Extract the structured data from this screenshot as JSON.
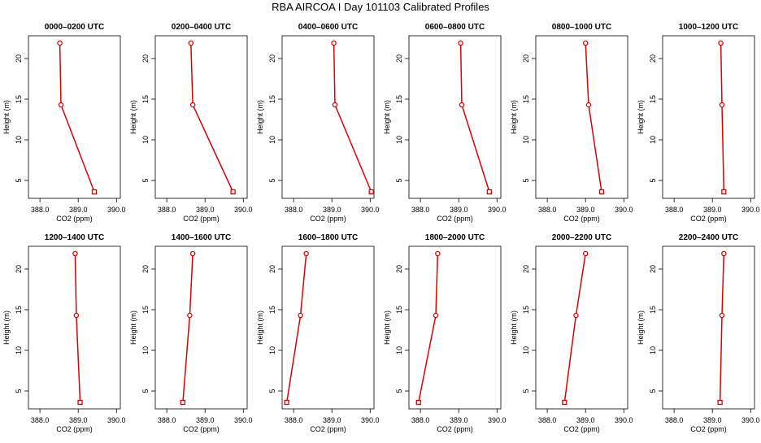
{
  "title": "RBA AIRCOA I  Day 101103  Calibrated Profiles",
  "common": {
    "xlabel": "CO2 (ppm)",
    "ylabel": "Height (m)",
    "xlim": [
      387.7,
      390.1
    ],
    "ylim": [
      2.8,
      22.8
    ],
    "xticks": [
      388.0,
      389.0,
      390.0
    ],
    "xtick_labels": [
      "388.0",
      "389.0",
      "390.0"
    ],
    "yticks": [
      5,
      10,
      15,
      20
    ],
    "ytick_labels": [
      "5",
      "10",
      "15",
      "20"
    ],
    "series_color": "#dd0000"
  },
  "chart_data": [
    {
      "type": "line",
      "title": "0000–0200 UTC",
      "x": [
        389.42,
        388.55,
        388.52
      ],
      "y": [
        3.6,
        14.3,
        21.9
      ]
    },
    {
      "type": "line",
      "title": "0200–0400 UTC",
      "x": [
        389.73,
        388.68,
        388.63
      ],
      "y": [
        3.6,
        14.3,
        21.9
      ]
    },
    {
      "type": "line",
      "title": "0400–0600 UTC",
      "x": [
        390.03,
        389.08,
        389.05
      ],
      "y": [
        3.6,
        14.3,
        21.9
      ]
    },
    {
      "type": "line",
      "title": "0600–0800 UTC",
      "x": [
        389.8,
        389.08,
        389.05
      ],
      "y": [
        3.6,
        14.3,
        21.9
      ]
    },
    {
      "type": "line",
      "title": "0800–1000 UTC",
      "x": [
        389.42,
        389.08,
        389.0
      ],
      "y": [
        3.6,
        14.3,
        21.9
      ]
    },
    {
      "type": "line",
      "title": "1000–1200 UTC",
      "x": [
        389.3,
        389.25,
        389.22
      ],
      "y": [
        3.6,
        14.3,
        21.9
      ]
    },
    {
      "type": "line",
      "title": "1200–1400 UTC",
      "x": [
        389.05,
        388.95,
        388.92
      ],
      "y": [
        3.6,
        14.3,
        21.9
      ]
    },
    {
      "type": "line",
      "title": "1400–1600 UTC",
      "x": [
        388.42,
        388.6,
        388.68
      ],
      "y": [
        3.6,
        14.3,
        21.9
      ]
    },
    {
      "type": "line",
      "title": "1600–1800 UTC",
      "x": [
        387.82,
        388.18,
        388.33
      ],
      "y": [
        3.6,
        14.3,
        21.9
      ]
    },
    {
      "type": "line",
      "title": "1800–2000 UTC",
      "x": [
        387.95,
        388.4,
        388.45
      ],
      "y": [
        3.6,
        14.3,
        21.9
      ]
    },
    {
      "type": "line",
      "title": "2000–2200 UTC",
      "x": [
        388.45,
        388.75,
        389.0
      ],
      "y": [
        3.6,
        14.3,
        21.9
      ]
    },
    {
      "type": "line",
      "title": "2200–2400 UTC",
      "x": [
        389.2,
        389.25,
        389.3
      ],
      "y": [
        3.6,
        14.3,
        21.9
      ]
    }
  ]
}
